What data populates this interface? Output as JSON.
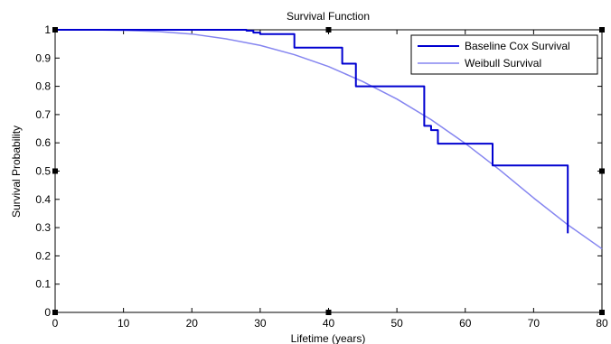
{
  "chart_data": {
    "type": "line",
    "title": "Survival Function",
    "xlabel": "Lifetime (years)",
    "ylabel": "Survival Probability",
    "xlim": [
      0,
      80
    ],
    "ylim": [
      0,
      1
    ],
    "xticks": [
      0,
      10,
      20,
      30,
      40,
      50,
      60,
      70,
      80
    ],
    "yticks": [
      0,
      0.1,
      0.2,
      0.3,
      0.4,
      0.5,
      0.6,
      0.7,
      0.8,
      0.9,
      1
    ],
    "grid": false,
    "legend_position": "top-right",
    "series": [
      {
        "name": "Baseline Cox Survival",
        "style": "step",
        "color": "#0000d0",
        "points": [
          [
            0,
            1
          ],
          [
            28,
            1
          ],
          [
            28,
            0.997
          ],
          [
            29,
            0.997
          ],
          [
            29,
            0.99
          ],
          [
            30,
            0.99
          ],
          [
            30,
            0.985
          ],
          [
            35,
            0.985
          ],
          [
            35,
            0.937
          ],
          [
            42,
            0.937
          ],
          [
            42,
            0.88
          ],
          [
            44,
            0.88
          ],
          [
            44,
            0.8
          ],
          [
            54,
            0.8
          ],
          [
            54,
            0.66
          ],
          [
            55,
            0.66
          ],
          [
            55,
            0.645
          ],
          [
            56,
            0.645
          ],
          [
            56,
            0.597
          ],
          [
            64,
            0.597
          ],
          [
            64,
            0.52
          ],
          [
            75,
            0.52
          ],
          [
            75,
            0.28
          ]
        ]
      },
      {
        "name": "Weibull Survival",
        "style": "line",
        "color": "#8585f0",
        "points": [
          [
            0,
            1
          ],
          [
            5,
            1
          ],
          [
            10,
            0.998
          ],
          [
            15,
            0.994
          ],
          [
            20,
            0.985
          ],
          [
            25,
            0.968
          ],
          [
            30,
            0.945
          ],
          [
            35,
            0.912
          ],
          [
            40,
            0.87
          ],
          [
            45,
            0.817
          ],
          [
            50,
            0.755
          ],
          [
            55,
            0.682
          ],
          [
            60,
            0.598
          ],
          [
            65,
            0.505
          ],
          [
            70,
            0.405
          ],
          [
            75,
            0.31
          ],
          [
            80,
            0.225
          ]
        ]
      }
    ]
  }
}
